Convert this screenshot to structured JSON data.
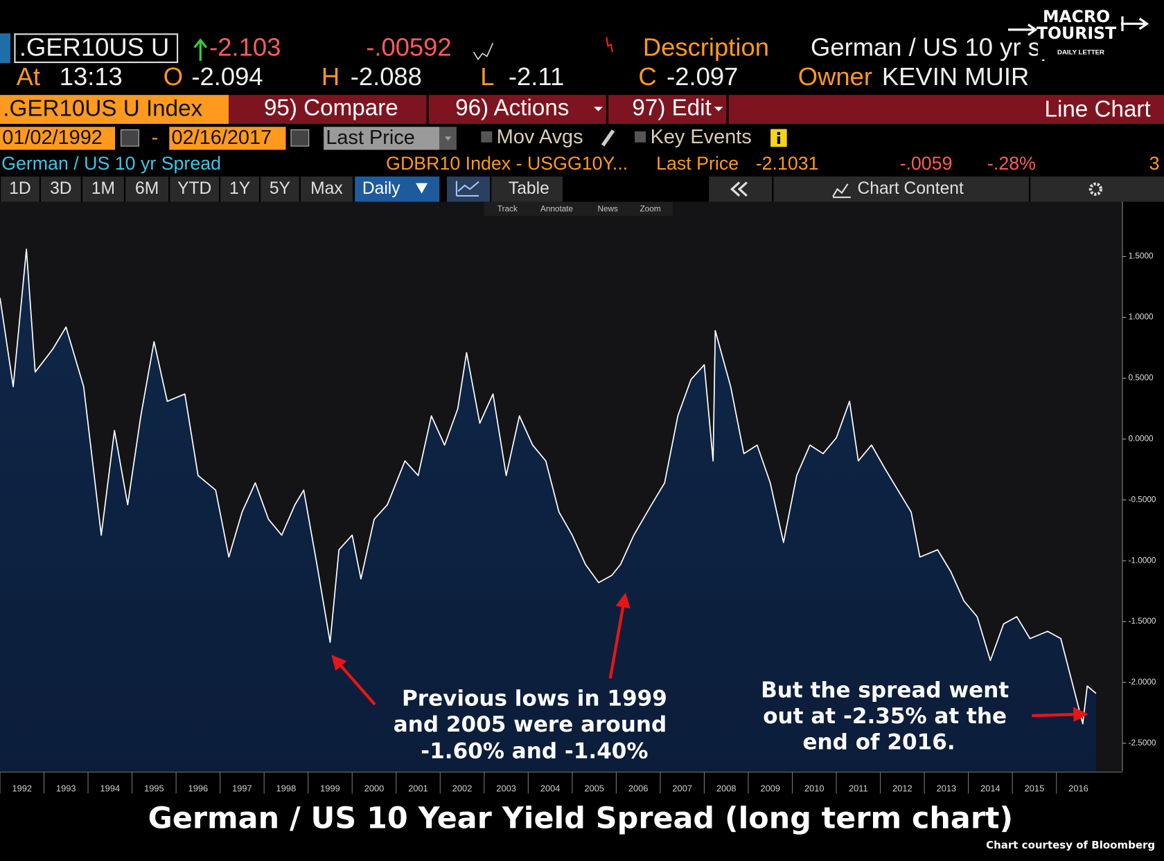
{
  "header": {
    "ticker": ".GER10US U",
    "last": "-2.103",
    "change": "-.00592",
    "description_label": "Description",
    "description": "German / US 10 yr sprea",
    "at_label": "At",
    "time": "13:13",
    "open_label": "O",
    "open": "-2.094",
    "high_label": "H",
    "high": "-2.088",
    "low_label": "L",
    "low": "-2.11",
    "close_label": "C",
    "close": "-2.097",
    "owner_label": "Owner",
    "owner": "KEVIN MUIR"
  },
  "logo": {
    "line1": "MACRO",
    "line2": "TOURIST",
    "line3": "DAILY LETTER"
  },
  "toolbar": {
    "security": ".GER10US U Index",
    "compare": "95) Compare",
    "actions": "96) Actions",
    "edit": "97) Edit",
    "view": "Line Chart"
  },
  "range": {
    "start": "01/02/1992",
    "separator": "-",
    "end": "02/16/2017",
    "field": "Last Price",
    "mov_avgs": "Mov Avgs",
    "key_events": "Key Events"
  },
  "legend": {
    "security": "GDBR10 Index - USGG10Y...",
    "field": "Last Price",
    "last": "-2.1031",
    "change": "-.0059",
    "pct": "-.28%",
    "count": "3"
  },
  "periods": [
    "1D",
    "3D",
    "1M",
    "6M",
    "YTD",
    "1Y",
    "5Y",
    "Max"
  ],
  "frequency": "Daily",
  "table": "Table",
  "chart_content": "Chart Content",
  "tools": [
    "Track",
    "Annotate",
    "News",
    "Zoom"
  ],
  "chart_data": {
    "type": "line",
    "title": "German / US 10 Year Yield Spread (long term chart)",
    "credit": "Chart courtesy of Bloomberg",
    "annotations": [
      "Previous lows in 1999",
      "and 2005 were around",
      "-1.60% and -1.40%",
      "But the spread went",
      "out at -2.35% at the",
      "end of 2016."
    ],
    "x": [
      1992.0,
      1992.3,
      1992.6,
      1992.8,
      1993.2,
      1993.5,
      1993.9,
      1994.3,
      1994.6,
      1994.9,
      1995.2,
      1995.5,
      1995.8,
      1996.2,
      1996.5,
      1996.9,
      1997.2,
      1997.5,
      1997.8,
      1998.1,
      1998.4,
      1998.7,
      1998.9,
      1999.2,
      1999.5,
      1999.7,
      2000.0,
      2000.2,
      2000.5,
      2000.8,
      2001.2,
      2001.5,
      2001.8,
      2002.1,
      2002.4,
      2002.6,
      2002.9,
      2003.2,
      2003.5,
      2003.8,
      2004.1,
      2004.4,
      2004.7,
      2005.0,
      2005.3,
      2005.6,
      2005.9,
      2006.1,
      2006.4,
      2006.8,
      2007.1,
      2007.4,
      2007.7,
      2008.0,
      2008.2,
      2008.25,
      2008.6,
      2008.9,
      2009.2,
      2009.5,
      2009.8,
      2010.1,
      2010.4,
      2010.7,
      2011.0,
      2011.3,
      2011.5,
      2011.8,
      2012.1,
      2012.4,
      2012.7,
      2012.9,
      2013.3,
      2013.6,
      2013.9,
      2014.2,
      2014.5,
      2014.8,
      2015.1,
      2015.4,
      2015.8,
      2016.1,
      2016.4,
      2016.6,
      2016.7,
      2016.9
    ],
    "series": [
      {
        "name": "German / US 10 yr Spread",
        "color": "#ffffff",
        "values": [
          1.16,
          0.43,
          1.56,
          0.55,
          0.74,
          0.92,
          0.43,
          -0.79,
          0.07,
          -0.54,
          0.19,
          0.8,
          0.31,
          0.37,
          -0.3,
          -0.42,
          -0.97,
          -0.6,
          -0.36,
          -0.66,
          -0.79,
          -0.54,
          -0.42,
          -1.03,
          -1.67,
          -0.91,
          -0.79,
          -1.15,
          -0.66,
          -0.54,
          -0.18,
          -0.3,
          0.19,
          -0.05,
          0.25,
          0.71,
          0.13,
          0.37,
          -0.3,
          0.19,
          -0.05,
          -0.18,
          -0.6,
          -0.79,
          -1.03,
          -1.18,
          -1.12,
          -1.03,
          -0.79,
          -0.54,
          -0.36,
          0.19,
          0.49,
          0.61,
          -0.18,
          0.89,
          0.43,
          -0.12,
          -0.05,
          -0.36,
          -0.85,
          -0.3,
          -0.05,
          -0.12,
          0.01,
          0.31,
          -0.18,
          -0.05,
          -0.24,
          -0.42,
          -0.6,
          -0.97,
          -0.91,
          -1.09,
          -1.33,
          -1.46,
          -1.82,
          -1.52,
          -1.46,
          -1.64,
          -1.58,
          -1.64,
          -2.06,
          -2.34,
          -2.03,
          -2.09
        ]
      }
    ],
    "area_color": "#0f2748",
    "xlim": [
      1992,
      2017.5
    ],
    "ylim": [
      -2.73,
      1.95
    ],
    "xticks": [
      1992,
      1993,
      1994,
      1995,
      1996,
      1997,
      1998,
      1999,
      2000,
      2001,
      2002,
      2003,
      2004,
      2005,
      2006,
      2007,
      2008,
      2009,
      2010,
      2011,
      2012,
      2013,
      2014,
      2015,
      2016
    ],
    "yticks": [
      {
        "value": 1.5,
        "label": "1.5000"
      },
      {
        "value": 1,
        "label": "1.0000"
      },
      {
        "value": 0.5,
        "label": "0.5000"
      },
      {
        "value": 0,
        "label": "0.0000"
      },
      {
        "value": -0.5,
        "label": "-0.5000"
      },
      {
        "value": -1,
        "label": "-1.0000"
      },
      {
        "value": -1.5,
        "label": "-1.5000"
      },
      {
        "value": -2,
        "label": "-2.0000"
      },
      {
        "value": -2.5,
        "label": "-2.5000"
      }
    ],
    "grid": false
  }
}
